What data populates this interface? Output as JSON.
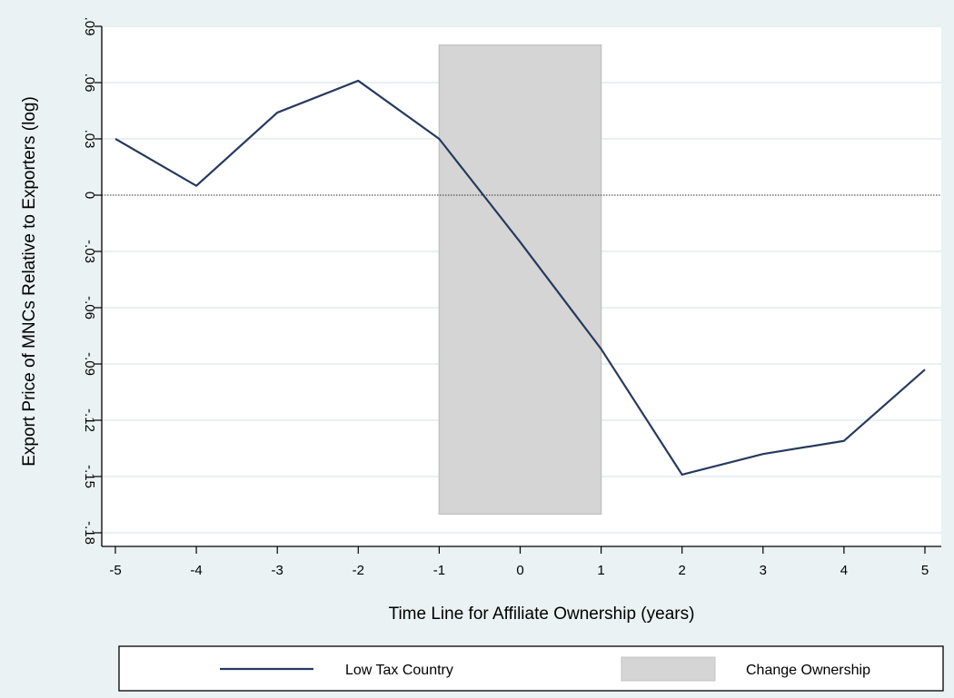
{
  "chart_data": {
    "type": "line",
    "title": "",
    "xlabel": "Time Line for Affiliate Ownership (years)",
    "ylabel": "Export Price of MNCs Relative to Exporters (log)",
    "xlim": [
      -5,
      5
    ],
    "ylim": [
      -0.18,
      0.09
    ],
    "x_ticks": [
      -5,
      -4,
      -3,
      -2,
      -1,
      0,
      1,
      2,
      3,
      4,
      5
    ],
    "x_tick_labels": [
      "-5",
      "-4",
      "-3",
      "-2",
      "-1",
      "0",
      "1",
      "2",
      "3",
      "4",
      "5"
    ],
    "y_ticks": [
      -0.18,
      -0.15,
      -0.12,
      -0.09,
      -0.06,
      -0.03,
      0,
      0.03,
      0.06,
      0.09
    ],
    "y_tick_labels": [
      "-.18",
      "-.15",
      "-.12",
      "-.09",
      "-.06",
      "-.03",
      "0",
      ".03",
      ".06",
      ".09"
    ],
    "grid": true,
    "reference_line_y": 0,
    "shaded_region": {
      "x": [
        -1,
        1
      ],
      "y": [
        -0.17,
        0.08
      ],
      "color": "#d5d5d5",
      "label": "Change Ownership"
    },
    "series": [
      {
        "name": "Low Tax Country",
        "color": "#263a5e",
        "x": [
          -5,
          -4,
          -3,
          -2,
          -1,
          0,
          1,
          2,
          3,
          4,
          5
        ],
        "values": [
          0.03,
          0.005,
          0.044,
          0.061,
          0.03,
          -0.025,
          -0.082,
          -0.149,
          -0.138,
          -0.131,
          -0.093
        ]
      }
    ],
    "legend": {
      "position": "bottom",
      "items": [
        {
          "label": "Low Tax Country",
          "kind": "line",
          "color": "#263a5e"
        },
        {
          "label": "Change Ownership",
          "kind": "box",
          "color": "#d5d5d5"
        }
      ]
    }
  }
}
